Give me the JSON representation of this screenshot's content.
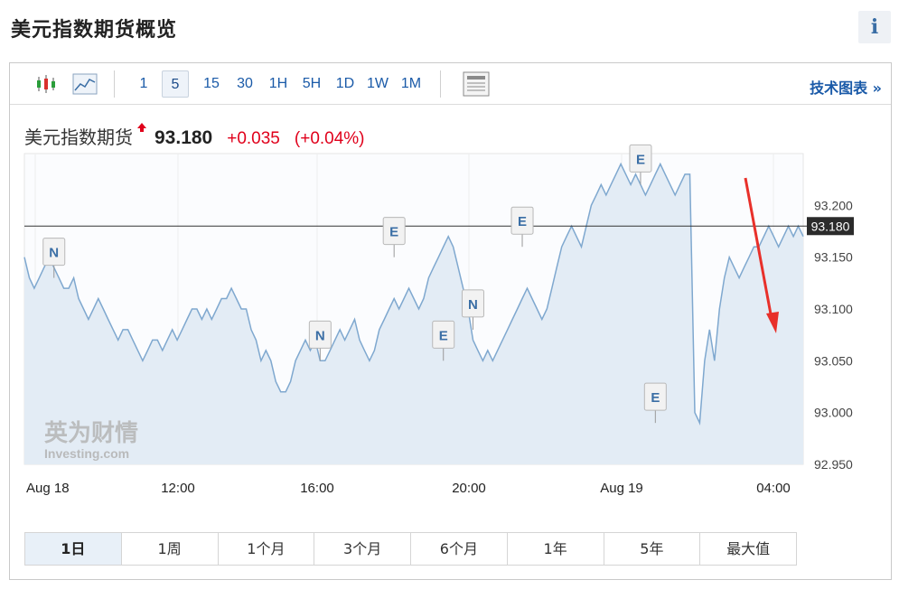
{
  "page": {
    "title": "美元指数期货概览",
    "info_label": "i"
  },
  "toolbar": {
    "timeframes": [
      {
        "label": "1",
        "selected": false
      },
      {
        "label": "5",
        "selected": true
      },
      {
        "label": "15",
        "selected": false
      },
      {
        "label": "30",
        "selected": false
      },
      {
        "label": "1H",
        "selected": false
      },
      {
        "label": "5H",
        "selected": false
      },
      {
        "label": "1D",
        "selected": false
      },
      {
        "label": "1W",
        "selected": false
      },
      {
        "label": "1M",
        "selected": false
      }
    ],
    "tech_chart_label": "技术图表 »",
    "icons": [
      "candlestick-icon",
      "line-chart-icon",
      "table-icon"
    ]
  },
  "quote": {
    "name": "美元指数期货",
    "price": "93.180",
    "change": "+0.035",
    "change_pct": "(+0.04%)"
  },
  "colors": {
    "up": "#e0001b",
    "line": "#7fa8cf",
    "fill": "#e3ecf5",
    "link": "#1a5aa8"
  },
  "watermark": {
    "cn": "英为财情",
    "en": "Investing.com"
  },
  "chart_data": {
    "type": "area",
    "x_tick_labels": [
      "Aug 18",
      "12:00",
      "16:00",
      "20:00",
      "Aug 19",
      "04:00"
    ],
    "y_tick_labels": [
      "93.200",
      "93.150",
      "93.100",
      "93.050",
      "93.000",
      "92.950"
    ],
    "ylim": [
      92.95,
      93.25
    ],
    "current_price_label": "93.180",
    "current_price": 93.18,
    "series": [
      {
        "values": [
          93.15,
          93.13,
          93.12,
          93.13,
          93.14,
          93.15,
          93.14,
          93.13,
          93.12,
          93.12,
          93.13,
          93.11,
          93.1,
          93.09,
          93.1,
          93.11,
          93.1,
          93.09,
          93.08,
          93.07,
          93.08,
          93.08,
          93.07,
          93.06,
          93.05,
          93.06,
          93.07,
          93.07,
          93.06,
          93.07,
          93.08,
          93.07,
          93.08,
          93.09,
          93.1,
          93.1,
          93.09,
          93.1,
          93.09,
          93.1,
          93.11,
          93.11,
          93.12,
          93.11,
          93.1,
          93.1,
          93.08,
          93.07,
          93.05,
          93.06,
          93.05,
          93.03,
          93.02,
          93.02,
          93.03,
          93.05,
          93.06,
          93.07,
          93.06,
          93.07,
          93.05,
          93.05,
          93.06,
          93.07,
          93.08,
          93.07,
          93.08,
          93.09,
          93.07,
          93.06,
          93.05,
          93.06,
          93.08,
          93.09,
          93.1,
          93.11,
          93.1,
          93.11,
          93.12,
          93.11,
          93.1,
          93.11,
          93.13,
          93.14,
          93.15,
          93.16,
          93.17,
          93.16,
          93.14,
          93.12,
          93.1,
          93.07,
          93.06,
          93.05,
          93.06,
          93.05,
          93.06,
          93.07,
          93.08,
          93.09,
          93.1,
          93.11,
          93.12,
          93.11,
          93.1,
          93.09,
          93.1,
          93.12,
          93.14,
          93.16,
          93.17,
          93.18,
          93.17,
          93.16,
          93.18,
          93.2,
          93.21,
          93.22,
          93.21,
          93.22,
          93.23,
          93.24,
          93.23,
          93.22,
          93.23,
          93.22,
          93.21,
          93.22,
          93.23,
          93.24,
          93.23,
          93.22,
          93.21,
          93.22,
          93.23,
          93.23,
          93.0,
          92.99,
          93.05,
          93.08,
          93.05,
          93.1,
          93.13,
          93.15,
          93.14,
          93.13,
          93.14,
          93.15,
          93.16,
          93.16,
          93.17,
          93.18,
          93.17,
          93.16,
          93.17,
          93.18,
          93.17,
          93.18,
          93.17
        ]
      }
    ],
    "event_markers": [
      {
        "label": "N",
        "index": 6,
        "value": 93.13
      },
      {
        "label": "N",
        "index": 60,
        "value": 93.05
      },
      {
        "label": "E",
        "index": 75,
        "value": 93.15
      },
      {
        "label": "E",
        "index": 85,
        "value": 93.05
      },
      {
        "label": "N",
        "index": 91,
        "value": 93.08
      },
      {
        "label": "E",
        "index": 101,
        "value": 93.16
      },
      {
        "label": "E",
        "index": 125,
        "value": 93.22
      },
      {
        "label": "E",
        "index": 128,
        "value": 92.99
      }
    ]
  },
  "periods": [
    {
      "label": "1日",
      "selected": true
    },
    {
      "label": "1周",
      "selected": false
    },
    {
      "label": "1个月",
      "selected": false
    },
    {
      "label": "3个月",
      "selected": false
    },
    {
      "label": "6个月",
      "selected": false
    },
    {
      "label": "1年",
      "selected": false
    },
    {
      "label": "5年",
      "selected": false
    },
    {
      "label": "最大值",
      "selected": false
    }
  ]
}
